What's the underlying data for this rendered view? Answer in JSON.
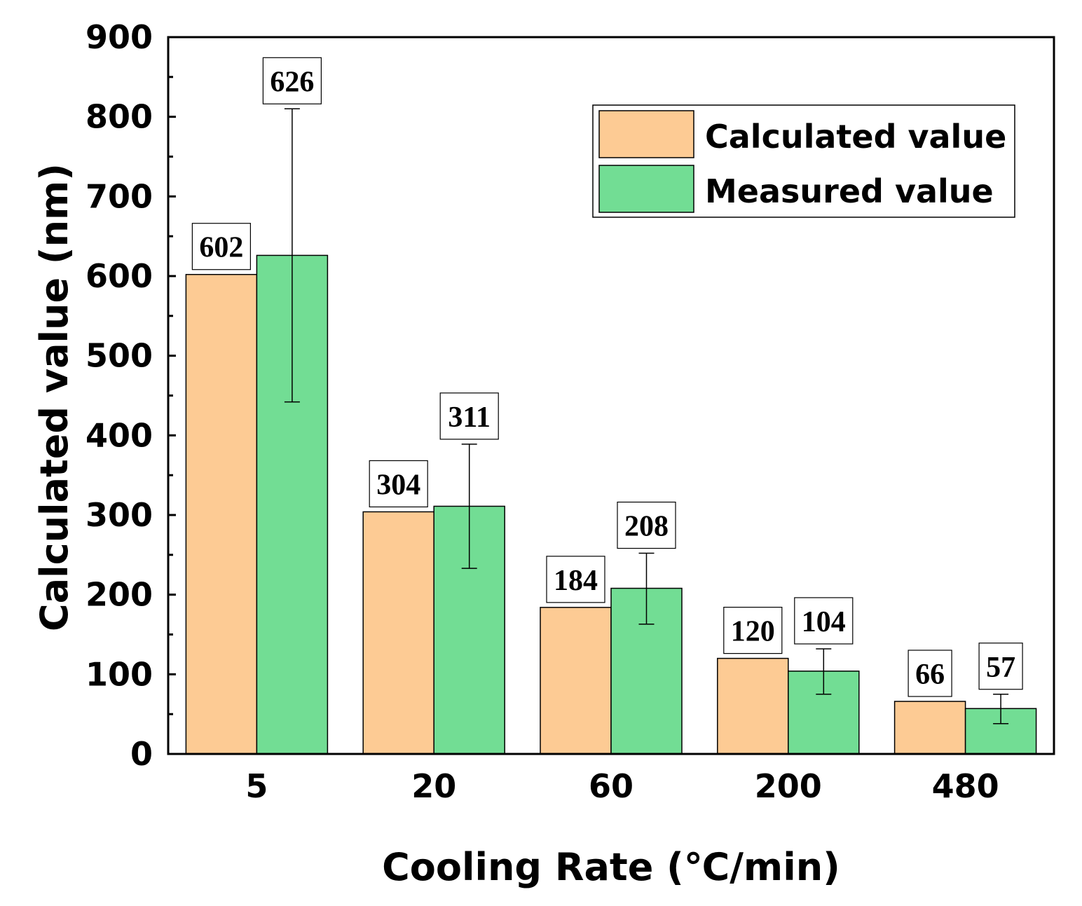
{
  "chart_data": {
    "type": "bar",
    "title": "",
    "xlabel": "Cooling Rate (℃/min)",
    "ylabel": "Calculated value (nm)",
    "ylim": [
      0,
      900
    ],
    "yticks": [
      "0",
      "100",
      "200",
      "300",
      "400",
      "500",
      "600",
      "700",
      "800",
      "900"
    ],
    "categories": [
      "5",
      "20",
      "60",
      "200",
      "480"
    ],
    "grid": false,
    "legend_position": "top-right",
    "series": [
      {
        "name": "Calculated value",
        "color": "#FDCB94",
        "values": [
          602,
          304,
          184,
          120,
          66
        ],
        "labels": [
          "602",
          "304",
          "184",
          "120",
          "66"
        ]
      },
      {
        "name": "Measured value",
        "color": "#72DD94",
        "values": [
          626,
          311,
          208,
          104,
          57
        ],
        "labels": [
          "626",
          "311",
          "208",
          "104",
          "57"
        ],
        "error_low": [
          442,
          233,
          163,
          75,
          38
        ],
        "error_high": [
          810,
          389,
          252,
          132,
          75
        ]
      }
    ]
  }
}
